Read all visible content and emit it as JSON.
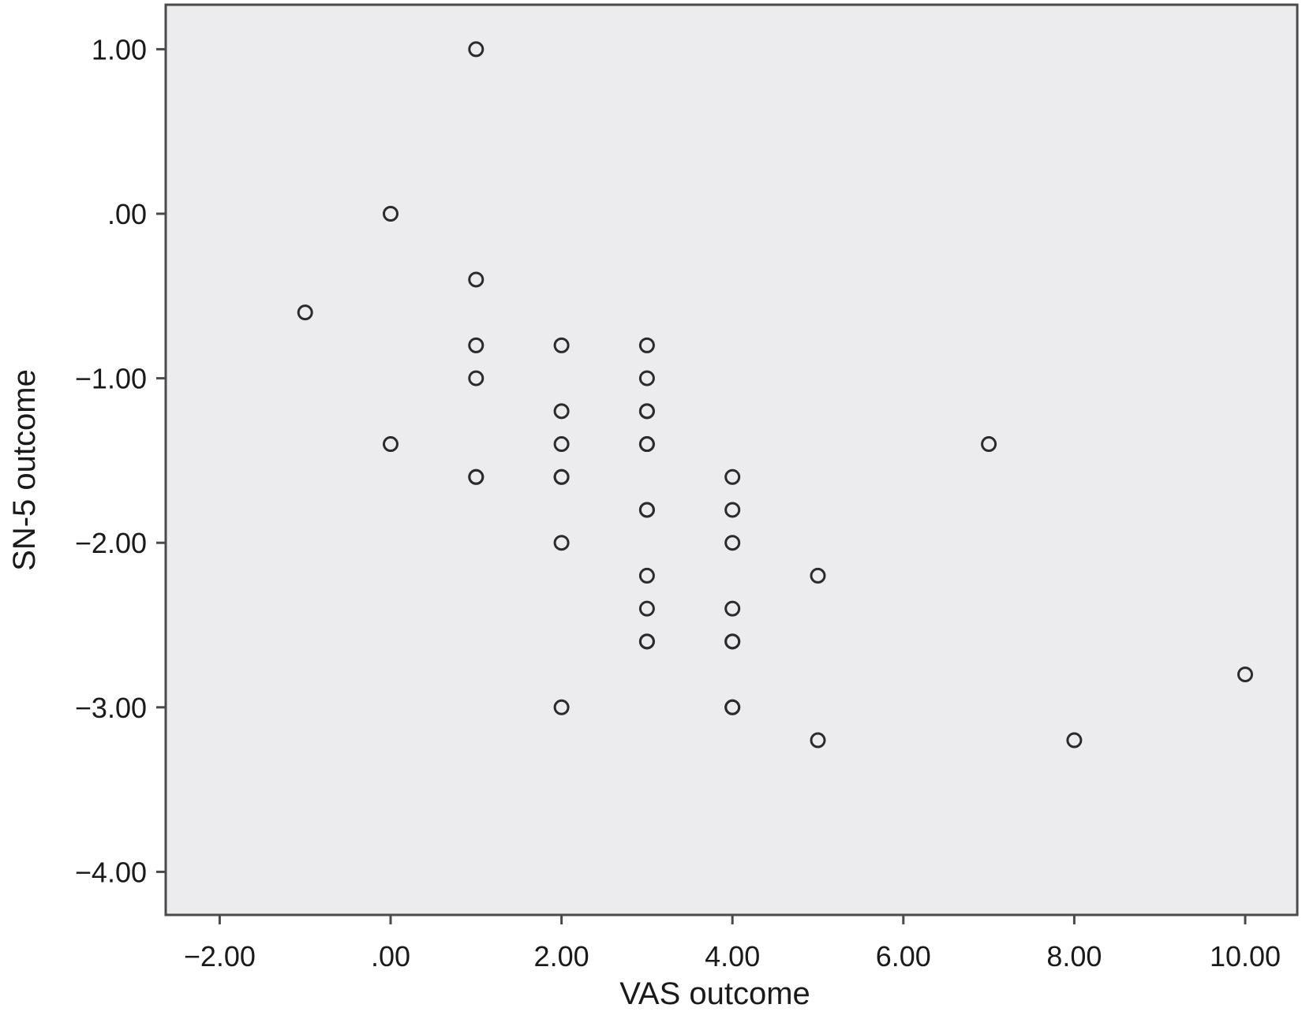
{
  "chart_data": {
    "type": "scatter",
    "title": "",
    "xlabel": "VAS outcome",
    "ylabel": "SN-5 outcome",
    "xlim": [
      -2.7,
      10.7
    ],
    "ylim": [
      -4.25,
      1.3
    ],
    "x_ticks": [
      -2,
      0,
      2,
      4,
      6,
      8,
      10
    ],
    "x_tick_labels": [
      "−2.00",
      ".00",
      "2.00",
      "4.00",
      "6.00",
      "8.00",
      "10.00"
    ],
    "y_ticks": [
      1,
      0,
      -1,
      -2,
      -3,
      -4
    ],
    "y_tick_labels": [
      "1.00",
      ".00",
      "−1.00",
      "−2.00",
      "−3.00",
      "−4.00"
    ],
    "grid": false,
    "legend": "none",
    "colors": {
      "plot_background": "#ececee",
      "frame": "#4a4a4a",
      "marker_stroke": "#2b2b2b"
    },
    "points": [
      {
        "x": 1,
        "y": 1.0
      },
      {
        "x": 0,
        "y": 0.0
      },
      {
        "x": 1,
        "y": -0.4
      },
      {
        "x": -1,
        "y": -0.6
      },
      {
        "x": 1,
        "y": -0.8
      },
      {
        "x": 2,
        "y": -0.8
      },
      {
        "x": 3,
        "y": -0.8
      },
      {
        "x": 1,
        "y": -1.0
      },
      {
        "x": 3,
        "y": -1.0
      },
      {
        "x": 2,
        "y": -1.2
      },
      {
        "x": 3,
        "y": -1.2
      },
      {
        "x": 3,
        "y": -1.2
      },
      {
        "x": 0,
        "y": -1.4
      },
      {
        "x": 2,
        "y": -1.4
      },
      {
        "x": 3,
        "y": -1.4
      },
      {
        "x": 3,
        "y": -1.4
      },
      {
        "x": 7,
        "y": -1.4
      },
      {
        "x": 1,
        "y": -1.6
      },
      {
        "x": 1,
        "y": -1.6
      },
      {
        "x": 2,
        "y": -1.6
      },
      {
        "x": 2,
        "y": -1.6
      },
      {
        "x": 4,
        "y": -1.6
      },
      {
        "x": 3,
        "y": -1.8
      },
      {
        "x": 3,
        "y": -1.8
      },
      {
        "x": 4,
        "y": -1.8
      },
      {
        "x": 2,
        "y": -2.0
      },
      {
        "x": 4,
        "y": -2.0
      },
      {
        "x": 3,
        "y": -2.2
      },
      {
        "x": 5,
        "y": -2.2
      },
      {
        "x": 3,
        "y": -2.4
      },
      {
        "x": 4,
        "y": -2.4
      },
      {
        "x": 3,
        "y": -2.6
      },
      {
        "x": 3,
        "y": -2.6
      },
      {
        "x": 4,
        "y": -2.6
      },
      {
        "x": 4,
        "y": -2.6
      },
      {
        "x": 10,
        "y": -2.8
      },
      {
        "x": 2,
        "y": -3.0
      },
      {
        "x": 4,
        "y": -3.0
      },
      {
        "x": 4,
        "y": -3.0
      },
      {
        "x": 5,
        "y": -3.2
      },
      {
        "x": 8,
        "y": -3.2
      }
    ]
  }
}
